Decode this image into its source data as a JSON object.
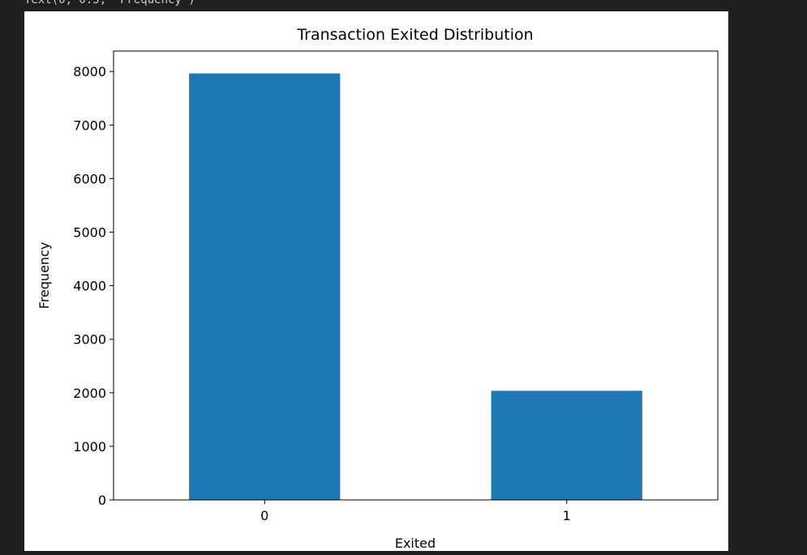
{
  "output_text": "Text(0, 0.5, 'Frequency')",
  "chart_data": {
    "type": "bar",
    "title": "Transaction Exited Distribution",
    "x_label": "Exited",
    "y_label": "Frequency",
    "categories": [
      "0",
      "1"
    ],
    "values": [
      7963,
      2037
    ],
    "color": "#1f77b4",
    "xlim": [
      -0.5,
      1.5
    ],
    "ylim": [
      0,
      8381
    ],
    "yticks": [
      0,
      1000,
      2000,
      3000,
      4000,
      5000,
      6000,
      7000,
      8000
    ],
    "grid": false
  }
}
